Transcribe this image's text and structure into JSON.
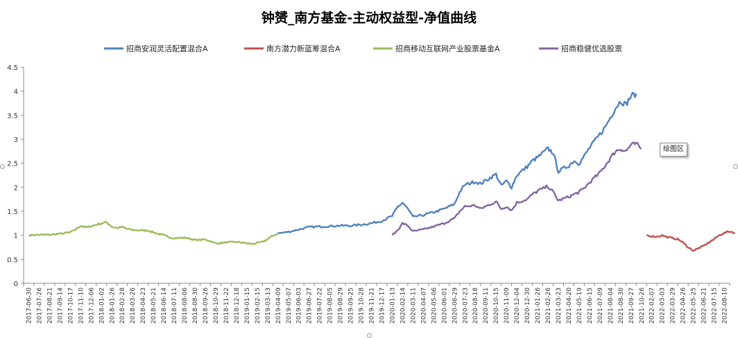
{
  "chart_data": {
    "type": "line",
    "title": "钟赟_南方基金-主动权益型-净值曲线",
    "ylim": [
      0,
      4.5
    ],
    "yticks": [
      "0",
      "0.5",
      "1",
      "1.5",
      "2",
      "2.5",
      "3",
      "3.5",
      "4",
      "4.5"
    ],
    "x_tick_labels": [
      "2017-06-30",
      "2017-07-26",
      "2017-08-21",
      "2017-09-14",
      "2017-10-17",
      "2017-11-10",
      "2017-12-06",
      "2018-01-02",
      "2018-01-26",
      "2018-02-28",
      "2018-03-26",
      "2018-04-23",
      "2018-05-21",
      "2018-06-14",
      "2018-07-11",
      "2018-08-06",
      "2018-08-30",
      "2018-09-26",
      "2018-10-29",
      "2018-11-22",
      "2018-12-18",
      "2019-01-15",
      "2019-02-15",
      "2019-03-13",
      "2019-04-09",
      "2019-05-07",
      "2019-06-03",
      "2019-06-27",
      "2019-07-22",
      "2019-08-05",
      "2019-08-29",
      "2019-09-25",
      "2019-10-28",
      "2019-11-21",
      "2019-12-17",
      "2020-01-13",
      "2020-02-14",
      "2020-03-11",
      "2020-04-07",
      "2020-05-06",
      "2020-06-01",
      "2020-06-29",
      "2020-07-23",
      "2020-08-18",
      "2020-09-11",
      "2020-10-15",
      "2020-11-09",
      "2020-12-04",
      "2020-12-30",
      "2021-01-26",
      "2021-02-26",
      "2021-03-23",
      "2021-04-20",
      "2021-05-19",
      "2021-06-15",
      "2021-07-09",
      "2021-08-04",
      "2021-08-30",
      "2021-09-27",
      "2021-10-26",
      "2022-02-07",
      "2022-03-03",
      "2022-03-29",
      "2022-04-26",
      "2022-05-25",
      "2022-06-21",
      "2022-07-15",
      "2022-08-10"
    ],
    "legend": [
      "招商安润灵活配置混合A",
      "南方潜力新蓝筹混合A",
      "招商移动互联网产业股票基金A",
      "招商稳健优选股票"
    ],
    "series": [
      {
        "name": "招商移动互联网产业股票基金A",
        "color": "#9BBB59",
        "x_start": 0,
        "x_end": 24,
        "points": [
          [
            0,
            1.0
          ],
          [
            1,
            1.01
          ],
          [
            2,
            1.01
          ],
          [
            3,
            1.03
          ],
          [
            4,
            1.06
          ],
          [
            4.5,
            1.12
          ],
          [
            5,
            1.2
          ],
          [
            5.5,
            1.16
          ],
          [
            6,
            1.19
          ],
          [
            7,
            1.25
          ],
          [
            7.5,
            1.27
          ],
          [
            8,
            1.18
          ],
          [
            8.5,
            1.15
          ],
          [
            9,
            1.17
          ],
          [
            9.5,
            1.13
          ],
          [
            10,
            1.11
          ],
          [
            11,
            1.1
          ],
          [
            11.5,
            1.1
          ],
          [
            12,
            1.06
          ],
          [
            12.5,
            1.03
          ],
          [
            13,
            1.0
          ],
          [
            13.5,
            0.96
          ],
          [
            14,
            0.94
          ],
          [
            15,
            0.95
          ],
          [
            15.5,
            0.93
          ],
          [
            16,
            0.9
          ],
          [
            17,
            0.91
          ],
          [
            17.5,
            0.88
          ],
          [
            18,
            0.83
          ],
          [
            18.5,
            0.84
          ],
          [
            19,
            0.85
          ],
          [
            20,
            0.86
          ],
          [
            20.5,
            0.85
          ],
          [
            21,
            0.83
          ],
          [
            21.5,
            0.82
          ],
          [
            22,
            0.84
          ],
          [
            22.5,
            0.86
          ],
          [
            23,
            0.92
          ],
          [
            23.5,
            0.99
          ],
          [
            24,
            1.04
          ]
        ]
      },
      {
        "name": "招商安润灵活配置混合A",
        "color": "#4F81BD",
        "x_start": 24,
        "x_end": 58.5,
        "points": [
          [
            24,
            1.04
          ],
          [
            25,
            1.07
          ],
          [
            26,
            1.12
          ],
          [
            27,
            1.17
          ],
          [
            28,
            1.18
          ],
          [
            29,
            1.19
          ],
          [
            30,
            1.2
          ],
          [
            31,
            1.2
          ],
          [
            32,
            1.22
          ],
          [
            33,
            1.25
          ],
          [
            34,
            1.3
          ],
          [
            35,
            1.4
          ],
          [
            35.5,
            1.58
          ],
          [
            36,
            1.68
          ],
          [
            36.5,
            1.55
          ],
          [
            37,
            1.38
          ],
          [
            38,
            1.42
          ],
          [
            39,
            1.48
          ],
          [
            40,
            1.55
          ],
          [
            41,
            1.65
          ],
          [
            41.5,
            1.9
          ],
          [
            42,
            2.05
          ],
          [
            43,
            2.12
          ],
          [
            43.5,
            2.07
          ],
          [
            44,
            2.14
          ],
          [
            45,
            2.27
          ],
          [
            45.5,
            2.03
          ],
          [
            46,
            2.13
          ],
          [
            46.5,
            2.0
          ],
          [
            47,
            2.25
          ],
          [
            48,
            2.43
          ],
          [
            48.5,
            2.55
          ],
          [
            49,
            2.62
          ],
          [
            50,
            2.8
          ],
          [
            50.5,
            2.72
          ],
          [
            51,
            2.33
          ],
          [
            52,
            2.45
          ],
          [
            52.5,
            2.55
          ],
          [
            53,
            2.5
          ],
          [
            53.5,
            2.65
          ],
          [
            54,
            2.82
          ],
          [
            55,
            3.1
          ],
          [
            55.5,
            3.25
          ],
          [
            56,
            3.45
          ],
          [
            56.5,
            3.65
          ],
          [
            57,
            3.8
          ],
          [
            57.5,
            3.72
          ],
          [
            58,
            3.9
          ],
          [
            58.5,
            3.95
          ]
        ]
      },
      {
        "name": "招商稳健优选股票",
        "color": "#8064A2",
        "x_start": 35,
        "x_end": 59,
        "points": [
          [
            35,
            1.0
          ],
          [
            35.5,
            1.1
          ],
          [
            36,
            1.25
          ],
          [
            36.5,
            1.2
          ],
          [
            37,
            1.08
          ],
          [
            38,
            1.12
          ],
          [
            39,
            1.18
          ],
          [
            40,
            1.25
          ],
          [
            41,
            1.35
          ],
          [
            41.5,
            1.5
          ],
          [
            42,
            1.6
          ],
          [
            43,
            1.62
          ],
          [
            43.5,
            1.55
          ],
          [
            44,
            1.6
          ],
          [
            45,
            1.7
          ],
          [
            45.5,
            1.55
          ],
          [
            46,
            1.6
          ],
          [
            46.5,
            1.52
          ],
          [
            47,
            1.68
          ],
          [
            48,
            1.75
          ],
          [
            48.5,
            1.85
          ],
          [
            49,
            1.92
          ],
          [
            50,
            2.02
          ],
          [
            50.5,
            1.9
          ],
          [
            51,
            1.72
          ],
          [
            52,
            1.8
          ],
          [
            52.5,
            1.85
          ],
          [
            53,
            1.9
          ],
          [
            53.5,
            1.98
          ],
          [
            54,
            2.1
          ],
          [
            55,
            2.3
          ],
          [
            55.5,
            2.45
          ],
          [
            56,
            2.6
          ],
          [
            56.5,
            2.75
          ],
          [
            57,
            2.8
          ],
          [
            57.5,
            2.75
          ],
          [
            58,
            2.88
          ],
          [
            58.5,
            2.9
          ],
          [
            59,
            2.8
          ]
        ]
      },
      {
        "name": "南方潜力新蓝筹混合A",
        "color": "#C0504D",
        "x_start": 59.5,
        "x_end": 68,
        "points": [
          [
            59.5,
            1.0
          ],
          [
            60,
            0.98
          ],
          [
            60.5,
            0.97
          ],
          [
            61,
            1.0
          ],
          [
            61.5,
            0.96
          ],
          [
            62,
            0.94
          ],
          [
            62.5,
            0.92
          ],
          [
            63,
            0.85
          ],
          [
            63.5,
            0.75
          ],
          [
            64,
            0.68
          ],
          [
            64.5,
            0.73
          ],
          [
            65,
            0.78
          ],
          [
            65.5,
            0.85
          ],
          [
            66,
            0.92
          ],
          [
            66.5,
            1.0
          ],
          [
            67,
            1.05
          ],
          [
            67.5,
            1.08
          ],
          [
            68,
            1.05
          ]
        ]
      }
    ]
  },
  "tooltip": "绘图区"
}
